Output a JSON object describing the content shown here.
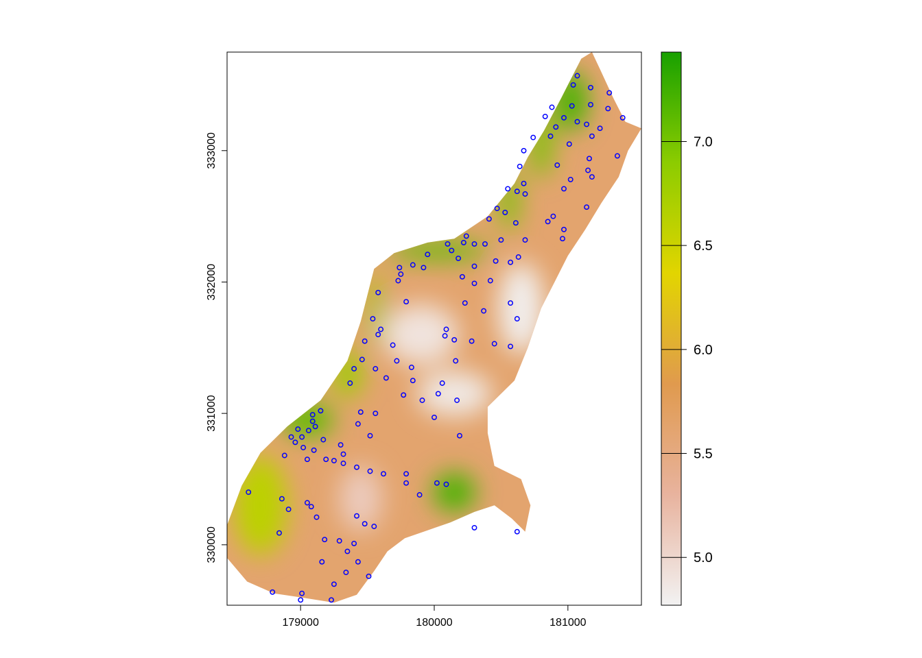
{
  "map": {
    "x_axis": {
      "range": [
        178450,
        181550
      ],
      "ticks": [
        {
          "value": 179000,
          "label": "179000"
        },
        {
          "value": 180000,
          "label": "180000"
        },
        {
          "value": 181000,
          "label": "181000"
        }
      ]
    },
    "y_axis": {
      "range": [
        329540,
        333750
      ],
      "ticks": [
        {
          "value": 330000,
          "label": "330000"
        },
        {
          "value": 331000,
          "label": "331000"
        },
        {
          "value": 332000,
          "label": "332000"
        },
        {
          "value": 333000,
          "label": "333000"
        }
      ]
    },
    "legend": {
      "placement": "right",
      "range": [
        4.77,
        7.43
      ],
      "ticks": [
        {
          "value": 5.0,
          "label": "5.0"
        },
        {
          "value": 5.5,
          "label": "5.5"
        },
        {
          "value": 6.0,
          "label": "6.0"
        },
        {
          "value": 6.5,
          "label": "6.5"
        },
        {
          "value": 7.0,
          "label": "7.0"
        }
      ],
      "colors": [
        "#f2f2f2",
        "#e8b39e",
        "#e09a4e",
        "#e2d500",
        "#8ccc00",
        "#18a000"
      ]
    },
    "point_color": "#0000ff",
    "region_outline": [
      [
        181180,
        333750
      ],
      [
        181240,
        333620
      ],
      [
        181340,
        333400
      ],
      [
        181430,
        333220
      ],
      [
        181550,
        333170
      ],
      [
        181450,
        333000
      ],
      [
        181380,
        332800
      ],
      [
        181250,
        332600
      ],
      [
        181130,
        332400
      ],
      [
        181000,
        332200
      ],
      [
        180900,
        332000
      ],
      [
        180800,
        331800
      ],
      [
        180700,
        331500
      ],
      [
        180600,
        331250
      ],
      [
        180400,
        331050
      ],
      [
        180400,
        330850
      ],
      [
        180450,
        330600
      ],
      [
        180650,
        330500
      ],
      [
        180720,
        330300
      ],
      [
        180680,
        330100
      ],
      [
        180580,
        330200
      ],
      [
        180450,
        330300
      ],
      [
        180300,
        330250
      ],
      [
        180120,
        330170
      ],
      [
        179950,
        330110
      ],
      [
        179780,
        330050
      ],
      [
        179650,
        329950
      ],
      [
        179550,
        329800
      ],
      [
        179420,
        329620
      ],
      [
        179250,
        329560
      ],
      [
        179000,
        329600
      ],
      [
        178800,
        329630
      ],
      [
        178600,
        329720
      ],
      [
        178450,
        329900
      ],
      [
        178450,
        330150
      ],
      [
        178560,
        330450
      ],
      [
        178700,
        330700
      ],
      [
        178900,
        330900
      ],
      [
        179150,
        331100
      ],
      [
        179350,
        331400
      ],
      [
        179450,
        331700
      ],
      [
        179550,
        332100
      ],
      [
        179700,
        332220
      ],
      [
        179950,
        332300
      ],
      [
        180150,
        332330
      ],
      [
        180400,
        332500
      ],
      [
        180600,
        332750
      ],
      [
        180700,
        332950
      ],
      [
        180820,
        333150
      ],
      [
        180950,
        333400
      ],
      [
        181100,
        333700
      ]
    ],
    "high_zones": [
      {
        "x": 181020,
        "y": 333380,
        "rx": 130,
        "ry": 230,
        "level": 7.2
      },
      {
        "x": 180800,
        "y": 333050,
        "rx": 80,
        "ry": 260,
        "level": 7.0
      },
      {
        "x": 180560,
        "y": 332620,
        "rx": 70,
        "ry": 230,
        "level": 7.0
      },
      {
        "x": 180030,
        "y": 332240,
        "rx": 380,
        "ry": 70,
        "level": 7.1
      },
      {
        "x": 179560,
        "y": 331800,
        "rx": 50,
        "ry": 280,
        "level": 6.8
      },
      {
        "x": 179350,
        "y": 331300,
        "rx": 110,
        "ry": 180,
        "level": 6.8
      },
      {
        "x": 179050,
        "y": 330950,
        "rx": 200,
        "ry": 130,
        "level": 7.1
      },
      {
        "x": 178700,
        "y": 330300,
        "rx": 200,
        "ry": 380,
        "level": 6.6
      },
      {
        "x": 180150,
        "y": 330400,
        "rx": 160,
        "ry": 150,
        "level": 7.2
      }
    ],
    "low_zones": [
      {
        "x": 180650,
        "y": 331800,
        "rx": 170,
        "ry": 350,
        "level": 4.8
      },
      {
        "x": 180150,
        "y": 331150,
        "rx": 280,
        "ry": 170,
        "level": 4.85
      },
      {
        "x": 179900,
        "y": 331600,
        "rx": 280,
        "ry": 230,
        "level": 4.9
      },
      {
        "x": 179450,
        "y": 330350,
        "rx": 160,
        "ry": 250,
        "level": 5.1
      }
    ],
    "points": [
      [
        181070,
        333570
      ],
      [
        181040,
        333500
      ],
      [
        181170,
        333480
      ],
      [
        181310,
        333440
      ],
      [
        180880,
        333330
      ],
      [
        181030,
        333340
      ],
      [
        181170,
        333350
      ],
      [
        181300,
        333320
      ],
      [
        180830,
        333260
      ],
      [
        181410,
        333250
      ],
      [
        180970,
        333250
      ],
      [
        181070,
        333220
      ],
      [
        181140,
        333200
      ],
      [
        180910,
        333180
      ],
      [
        181240,
        333170
      ],
      [
        180740,
        333100
      ],
      [
        180870,
        333110
      ],
      [
        181180,
        333110
      ],
      [
        181010,
        333050
      ],
      [
        181370,
        332960
      ],
      [
        180670,
        333000
      ],
      [
        181160,
        332940
      ],
      [
        180640,
        332880
      ],
      [
        180920,
        332890
      ],
      [
        181150,
        332850
      ],
      [
        181180,
        332800
      ],
      [
        181020,
        332780
      ],
      [
        180670,
        332750
      ],
      [
        180970,
        332710
      ],
      [
        180550,
        332710
      ],
      [
        180620,
        332690
      ],
      [
        180680,
        332670
      ],
      [
        181140,
        332570
      ],
      [
        180470,
        332560
      ],
      [
        180530,
        332530
      ],
      [
        180890,
        332500
      ],
      [
        180410,
        332480
      ],
      [
        180850,
        332460
      ],
      [
        180610,
        332450
      ],
      [
        180970,
        332400
      ],
      [
        180240,
        332350
      ],
      [
        180220,
        332300
      ],
      [
        180380,
        332290
      ],
      [
        180500,
        332320
      ],
      [
        180960,
        332330
      ],
      [
        180680,
        332320
      ],
      [
        180300,
        332290
      ],
      [
        180100,
        332290
      ],
      [
        180130,
        332240
      ],
      [
        179950,
        332210
      ],
      [
        180180,
        332180
      ],
      [
        179840,
        332130
      ],
      [
        180630,
        332190
      ],
      [
        180570,
        332150
      ],
      [
        180460,
        332160
      ],
      [
        179740,
        332110
      ],
      [
        179920,
        332110
      ],
      [
        180300,
        332120
      ],
      [
        179750,
        332060
      ],
      [
        180210,
        332040
      ],
      [
        179730,
        332010
      ],
      [
        180420,
        332010
      ],
      [
        180300,
        331990
      ],
      [
        179580,
        331920
      ],
      [
        179790,
        331850
      ],
      [
        180230,
        331840
      ],
      [
        180570,
        331840
      ],
      [
        180370,
        331780
      ],
      [
        180620,
        331720
      ],
      [
        179540,
        331720
      ],
      [
        179600,
        331640
      ],
      [
        180090,
        331640
      ],
      [
        179580,
        331600
      ],
      [
        180080,
        331590
      ],
      [
        180280,
        331550
      ],
      [
        180150,
        331560
      ],
      [
        180450,
        331530
      ],
      [
        179480,
        331550
      ],
      [
        179690,
        331520
      ],
      [
        180570,
        331510
      ],
      [
        179460,
        331410
      ],
      [
        179720,
        331400
      ],
      [
        179830,
        331350
      ],
      [
        179560,
        331340
      ],
      [
        180160,
        331400
      ],
      [
        179400,
        331340
      ],
      [
        179640,
        331270
      ],
      [
        179840,
        331250
      ],
      [
        179370,
        331230
      ],
      [
        180060,
        331230
      ],
      [
        180030,
        331150
      ],
      [
        179770,
        331140
      ],
      [
        179910,
        331100
      ],
      [
        180170,
        331100
      ],
      [
        179560,
        331000
      ],
      [
        179450,
        331010
      ],
      [
        180000,
        330970
      ],
      [
        180190,
        330830
      ],
      [
        179150,
        331020
      ],
      [
        179090,
        330990
      ],
      [
        179090,
        330940
      ],
      [
        179430,
        330920
      ],
      [
        179520,
        330830
      ],
      [
        179060,
        330870
      ],
      [
        179110,
        330900
      ],
      [
        178980,
        330880
      ],
      [
        178930,
        330820
      ],
      [
        179010,
        330820
      ],
      [
        179170,
        330800
      ],
      [
        179300,
        330760
      ],
      [
        178960,
        330780
      ],
      [
        179020,
        330740
      ],
      [
        179100,
        330720
      ],
      [
        179320,
        330690
      ],
      [
        178880,
        330680
      ],
      [
        179050,
        330650
      ],
      [
        179190,
        330650
      ],
      [
        179250,
        330640
      ],
      [
        179320,
        330620
      ],
      [
        179420,
        330590
      ],
      [
        179520,
        330560
      ],
      [
        179620,
        330540
      ],
      [
        179790,
        330540
      ],
      [
        179790,
        330470
      ],
      [
        180020,
        330470
      ],
      [
        180090,
        330460
      ],
      [
        179890,
        330380
      ],
      [
        178610,
        330400
      ],
      [
        178860,
        330350
      ],
      [
        179050,
        330320
      ],
      [
        179080,
        330290
      ],
      [
        178910,
        330270
      ],
      [
        179420,
        330220
      ],
      [
        179120,
        330210
      ],
      [
        179480,
        330160
      ],
      [
        179550,
        330140
      ],
      [
        178840,
        330090
      ],
      [
        179180,
        330040
      ],
      [
        179290,
        330030
      ],
      [
        180300,
        330130
      ],
      [
        180620,
        330100
      ],
      [
        179400,
        330010
      ],
      [
        179350,
        329950
      ],
      [
        179160,
        329870
      ],
      [
        179430,
        329870
      ],
      [
        179340,
        329790
      ],
      [
        179250,
        329700
      ],
      [
        179510,
        329760
      ],
      [
        179010,
        329630
      ],
      [
        178790,
        329640
      ],
      [
        179000,
        329580
      ],
      [
        179230,
        329580
      ]
    ]
  }
}
